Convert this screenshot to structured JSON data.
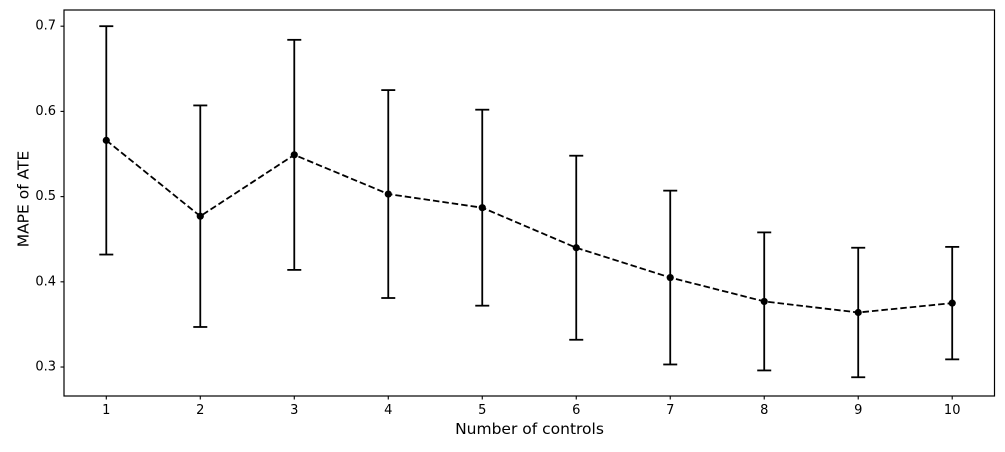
{
  "figure": {
    "background_color": "#ffffff",
    "axes_color": "#000000"
  },
  "chart_data": {
    "type": "line",
    "subtype": "errorbar",
    "title": "",
    "xlabel": "Number of controls",
    "ylabel": "MAPE of ATE",
    "x": [
      1,
      2,
      3,
      4,
      5,
      6,
      7,
      8,
      9,
      10
    ],
    "y": [
      0.566,
      0.477,
      0.549,
      0.503,
      0.487,
      0.44,
      0.405,
      0.377,
      0.364,
      0.375
    ],
    "yerr": [
      0.134,
      0.13,
      0.135,
      0.122,
      0.115,
      0.108,
      0.102,
      0.081,
      0.076,
      0.066
    ],
    "xticks": {
      "values": [
        1,
        2,
        3,
        4,
        5,
        6,
        7,
        8,
        9,
        10
      ],
      "labels": [
        "1",
        "2",
        "3",
        "4",
        "5",
        "6",
        "7",
        "8",
        "9",
        "10"
      ]
    },
    "yticks": {
      "values": [
        0.3,
        0.4,
        0.5,
        0.6,
        0.7
      ],
      "labels": [
        "0.3",
        "0.4",
        "0.5",
        "0.6",
        "0.7"
      ]
    },
    "xlim": [
      0.55,
      10.45
    ],
    "ylim": [
      0.266,
      0.719
    ],
    "line_style": "dashed",
    "marker": "filled-circle",
    "series_color": "#000000",
    "grid": false
  }
}
